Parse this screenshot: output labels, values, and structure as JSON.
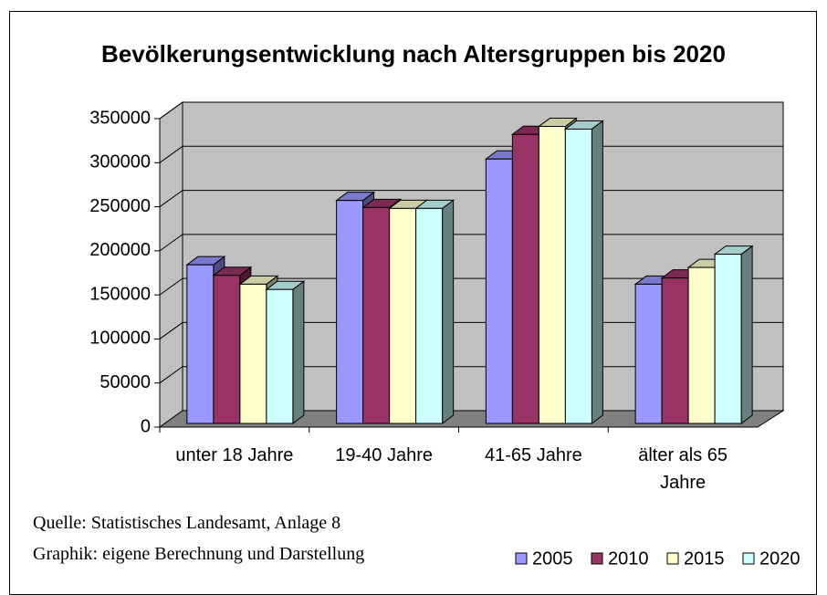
{
  "chart_data": {
    "type": "bar3d",
    "title": "Bevölkerungsentwicklung nach Altersgruppen bis 2020",
    "categories": [
      "unter 18 Jahre",
      "19-40 Jahre",
      "41-65 Jahre",
      "älter als 65 Jahre"
    ],
    "series": [
      {
        "name": "2005",
        "color": "#9999ff",
        "values": [
          180000,
          253000,
          300000,
          158000
        ]
      },
      {
        "name": "2010",
        "color": "#993366",
        "values": [
          168000,
          245000,
          328000,
          165000
        ]
      },
      {
        "name": "2015",
        "color": "#ffffcc",
        "values": [
          158000,
          244000,
          337000,
          177000
        ]
      },
      {
        "name": "2020",
        "color": "#ccffff",
        "values": [
          152000,
          244000,
          334000,
          192000
        ]
      }
    ],
    "ylim": [
      0,
      350000
    ],
    "yticks": [
      0,
      50000,
      100000,
      150000,
      200000,
      250000,
      300000,
      350000
    ],
    "grid": true,
    "legend": "bottom",
    "notes": [
      "Quelle: Statistisches Landesamt, Anlage 8",
      "Graphik: eigene Berechnung und Darstellung"
    ]
  }
}
